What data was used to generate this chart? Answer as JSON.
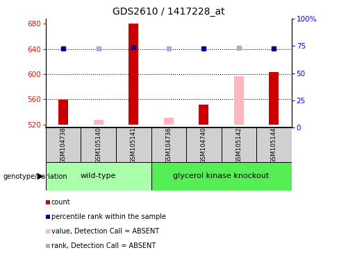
{
  "title": "GDS2610 / 1417228_at",
  "samples": [
    "GSM104738",
    "GSM105140",
    "GSM105141",
    "GSM104736",
    "GSM104740",
    "GSM105142",
    "GSM105144"
  ],
  "ylim_left": [
    515,
    688
  ],
  "ylim_right": [
    0,
    100
  ],
  "yticks_left": [
    520,
    560,
    600,
    640,
    680
  ],
  "yticks_right": [
    0,
    25,
    50,
    75,
    100
  ],
  "yticklabels_right": [
    "0",
    "25",
    "50",
    "75",
    "100%"
  ],
  "count_values": [
    559,
    null,
    680,
    null,
    552,
    null,
    603
  ],
  "count_color": "#CC0000",
  "absent_value_values": [
    null,
    527,
    null,
    531,
    null,
    597,
    null
  ],
  "absent_value_color": "#FFB6C1",
  "percentile_rank_values": [
    641,
    null,
    643,
    null,
    641,
    null,
    641
  ],
  "percentile_rank_color": "#000099",
  "absent_rank_values": [
    null,
    641,
    null,
    641,
    null,
    642,
    null
  ],
  "absent_rank_color": "#AAAADD",
  "baseline": 520,
  "bar_width": 0.28,
  "dotted_lines": [
    560,
    600,
    640
  ],
  "wt_green": "#AAFFAA",
  "gk_green": "#55EE55",
  "gray_box": "#D0D0D0",
  "genotype_label": "genotype/variation",
  "wt_label": "wild-type",
  "gk_label": "glycerol kinase knockout",
  "legend_entries": [
    {
      "label": "count",
      "color": "#CC0000"
    },
    {
      "label": "percentile rank within the sample",
      "color": "#000099"
    },
    {
      "label": "value, Detection Call = ABSENT",
      "color": "#FFB6C1"
    },
    {
      "label": "rank, Detection Call = ABSENT",
      "color": "#AAAADD"
    }
  ]
}
